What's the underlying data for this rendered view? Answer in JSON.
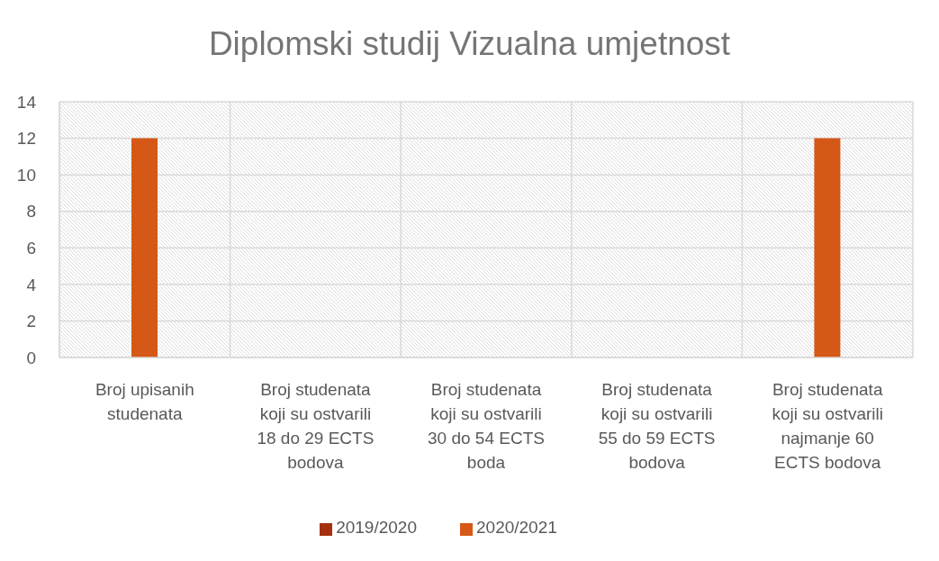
{
  "chart_data": {
    "type": "bar",
    "title": "Diplomski studij Vizualna umjetnost",
    "categories": [
      "Broj upisanih studenata",
      "Broj studenata koji su ostvarili 18 do 29 ECTS bodova",
      "Broj studenata koji su ostvarili 30 do 54 ECTS boda",
      "Broj studenata koji su ostvarili 55 do 59 ECTS bodova",
      "Broj studenata koji su ostvarili najmanje 60 ECTS bodova"
    ],
    "series": [
      {
        "name": "2019/2020",
        "color": "#a5300f",
        "values": [
          null,
          null,
          null,
          null,
          null
        ]
      },
      {
        "name": "2020/2021",
        "color": "#d55816",
        "values": [
          12,
          null,
          null,
          null,
          12
        ]
      }
    ],
    "ylim": [
      0,
      14
    ],
    "yticks": [
      0,
      2,
      4,
      6,
      8,
      10,
      12,
      14
    ],
    "grid": true,
    "legend": "bottom"
  }
}
